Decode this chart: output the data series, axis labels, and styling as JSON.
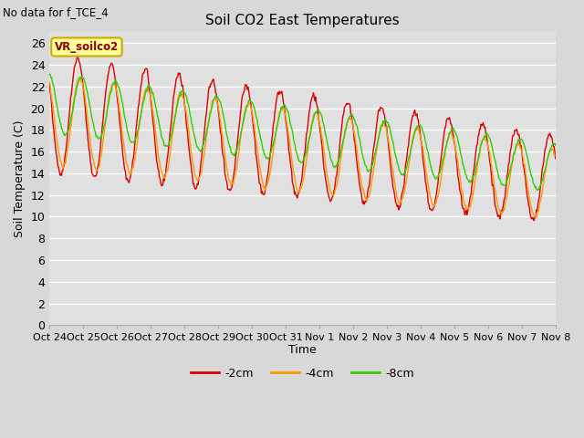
{
  "title": "Soil CO2 East Temperatures",
  "no_data_label": "No data for f_TCE_4",
  "vr_label": "VR_soilco2",
  "ylabel": "Soil Temperature (C)",
  "xlabel": "Time",
  "ylim": [
    0,
    27
  ],
  "yticks": [
    0,
    2,
    4,
    6,
    8,
    10,
    12,
    14,
    16,
    18,
    20,
    22,
    24,
    26
  ],
  "legend_labels": [
    "-2cm",
    "-4cm",
    "-8cm"
  ],
  "legend_colors": [
    "#dd0000",
    "#ff9900",
    "#33cc00"
  ],
  "line_colors": [
    "#dd0000",
    "#ff9900",
    "#33cc00"
  ],
  "xtick_labels": [
    "Oct 24",
    "Oct 25",
    "Oct 26",
    "Oct 27",
    "Oct 28",
    "Oct 29",
    "Oct 30",
    "Oct 31",
    "Nov 1",
    "Nov 2",
    "Nov 3",
    "Nov 4",
    "Nov 5",
    "Nov 6",
    "Nov 7",
    "Nov 8"
  ],
  "n_days": 15,
  "points_per_day": 48
}
